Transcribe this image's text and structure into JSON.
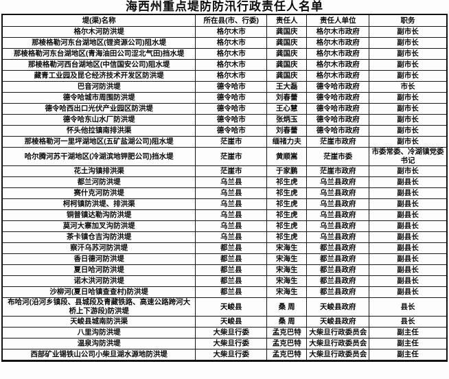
{
  "title": "海西州重点堤防防汛行政责任人名单",
  "table": {
    "columns": [
      "堤(渠)名称",
      "所在县(市、行委)",
      "责任人",
      "责任人单位",
      "职务"
    ],
    "rows": [
      {
        "name": "格尔木河防洪堤",
        "county": "格尔木市",
        "person": "龚国庆",
        "unit": "格尔木市政府",
        "position": "副市长"
      },
      {
        "name": "那棱格勒河东台湖地区(锂资源公司)阻水堤",
        "county": "格尔木市",
        "person": "龚国庆",
        "unit": "格尔木市政府",
        "position": "副市长"
      },
      {
        "name": "那棱格勒河东台湖地区(青海油田公司涩北气田)挡水堤",
        "county": "格尔木市",
        "person": "龚国庆",
        "unit": "格尔木市政府",
        "position": "副市长"
      },
      {
        "name": "那棱格勒河西台湖地区(中信国安公司)阻水堤",
        "county": "格尔木市",
        "person": "龚国庆",
        "unit": "格尔木市政府",
        "position": "副市长"
      },
      {
        "name": "藏青工业园及昆仑经济技术开发区防洪堤",
        "county": "格尔木市",
        "person": "龚国庆",
        "unit": "格尔木市政府",
        "position": "副市长"
      },
      {
        "name": "巴音河防洪堤",
        "county": "德令哈市",
        "person": "王大磊",
        "unit": "德令哈市政府",
        "position": "市长"
      },
      {
        "name": "德令哈城市周围防洪堤",
        "county": "德令哈市",
        "person": "刘春蕾",
        "unit": "德令哈市政府",
        "position": "副市长"
      },
      {
        "name": "德令哈西出口光伏产业园区防洪堤",
        "county": "德令哈市",
        "person": "王心慧",
        "unit": "德令哈市政府",
        "position": "副市长"
      },
      {
        "name": "德令哈东山水厂防洪堤",
        "county": "德令哈市",
        "person": "张炳玉",
        "unit": "德令哈市政府",
        "position": "副市长"
      },
      {
        "name": "怀头他拉镇南排洪渠",
        "county": "德令哈市",
        "person": "刘春蕾",
        "unit": "德令哈市政府",
        "position": "副市长"
      },
      {
        "name": "那棱格勒河一里坪湖地区(五矿盐湖公司)阻水堤",
        "county": "茫崖市",
        "person": "缅禇力夫",
        "unit": "茫崖市政府",
        "position": "副市长"
      },
      {
        "name": "哈尔腾河苏干湖地区(冷湖滨地钾肥公司)挡水堤",
        "county": "茫崖市",
        "person": "黄顺嵩",
        "unit": "茫崖市委",
        "position": "市委常委、冷湖镇党委书记"
      },
      {
        "name": "花土沟镇排洪渠",
        "county": "茫崖市",
        "person": "于家鹏",
        "unit": "茫崖市政府",
        "position": "副市长"
      },
      {
        "name": "都兰河防洪堤",
        "county": "乌兰县",
        "person": "祁生虎",
        "unit": "乌兰县政府",
        "position": "副县长"
      },
      {
        "name": "赛什克河防洪堤",
        "county": "乌兰县",
        "person": "祁生虎",
        "unit": "乌兰县政府",
        "position": "副县长"
      },
      {
        "name": "柯柯镇防洪堤、排洪渠",
        "county": "乌兰县",
        "person": "祁生虎",
        "unit": "乌兰县政府",
        "position": "副县长"
      },
      {
        "name": "铜普镇达勒沟防洪堤",
        "county": "乌兰县",
        "person": "祁生虎",
        "unit": "乌兰县政府",
        "position": "副县长"
      },
      {
        "name": "莫河大寨加叉沟防洪堤",
        "county": "乌兰县",
        "person": "祁生虎",
        "unit": "乌兰县政府",
        "position": "副县长"
      },
      {
        "name": "茶卡镇仓吉沟防洪堤",
        "county": "乌兰县",
        "person": "祁生虎",
        "unit": "乌兰县政府",
        "position": "副县长"
      },
      {
        "name": "察汗乌苏河防洪堤",
        "county": "都兰县",
        "person": "宋海生",
        "unit": "都兰县政府",
        "position": "副县长"
      },
      {
        "name": "香日德河防洪堤",
        "county": "都兰县",
        "person": "宋海生",
        "unit": "都兰县政府",
        "position": "副县长"
      },
      {
        "name": "夏日哈河防洪堤",
        "county": "都兰县",
        "person": "宋海生",
        "unit": "都兰县政府",
        "position": "副县长"
      },
      {
        "name": "诺木洪河防洪堤",
        "county": "都兰县",
        "person": "宋海生",
        "unit": "都兰县政府",
        "position": "副县长"
      },
      {
        "name": "沙柳河(夏日哈镇查查村)防洪堤",
        "county": "都兰县",
        "person": "宋海生",
        "unit": "都兰县政府",
        "position": "副县长"
      },
      {
        "name": "布哈河(沿河乡镇段、县城段及青藏铁路、高速公路跨河大桥上下游段)防洪堤",
        "county": "天峻县",
        "person": "桑 周",
        "unit": "天峻县政府",
        "position": "县长"
      },
      {
        "name": "天峻县城南防洪渠",
        "county": "天峻县",
        "person": "桑 周",
        "unit": "天峻县政府",
        "position": "县长"
      },
      {
        "name": "八里沟防洪堤",
        "county": "大柴旦行委",
        "person": "孟克巴特",
        "unit": "大柴旦行政委员会",
        "position": "副主任"
      },
      {
        "name": "温泉沟防洪堤",
        "county": "大柴旦行委",
        "person": "孟克巴特",
        "unit": "大柴旦行政委员会",
        "position": "副主任"
      },
      {
        "name": "西部矿业锡铁山公司小柴旦湖水源地防洪堤",
        "county": "大柴旦行委",
        "person": "孟克巴特",
        "unit": "大柴旦行政委员会",
        "position": "副主任"
      }
    ]
  }
}
